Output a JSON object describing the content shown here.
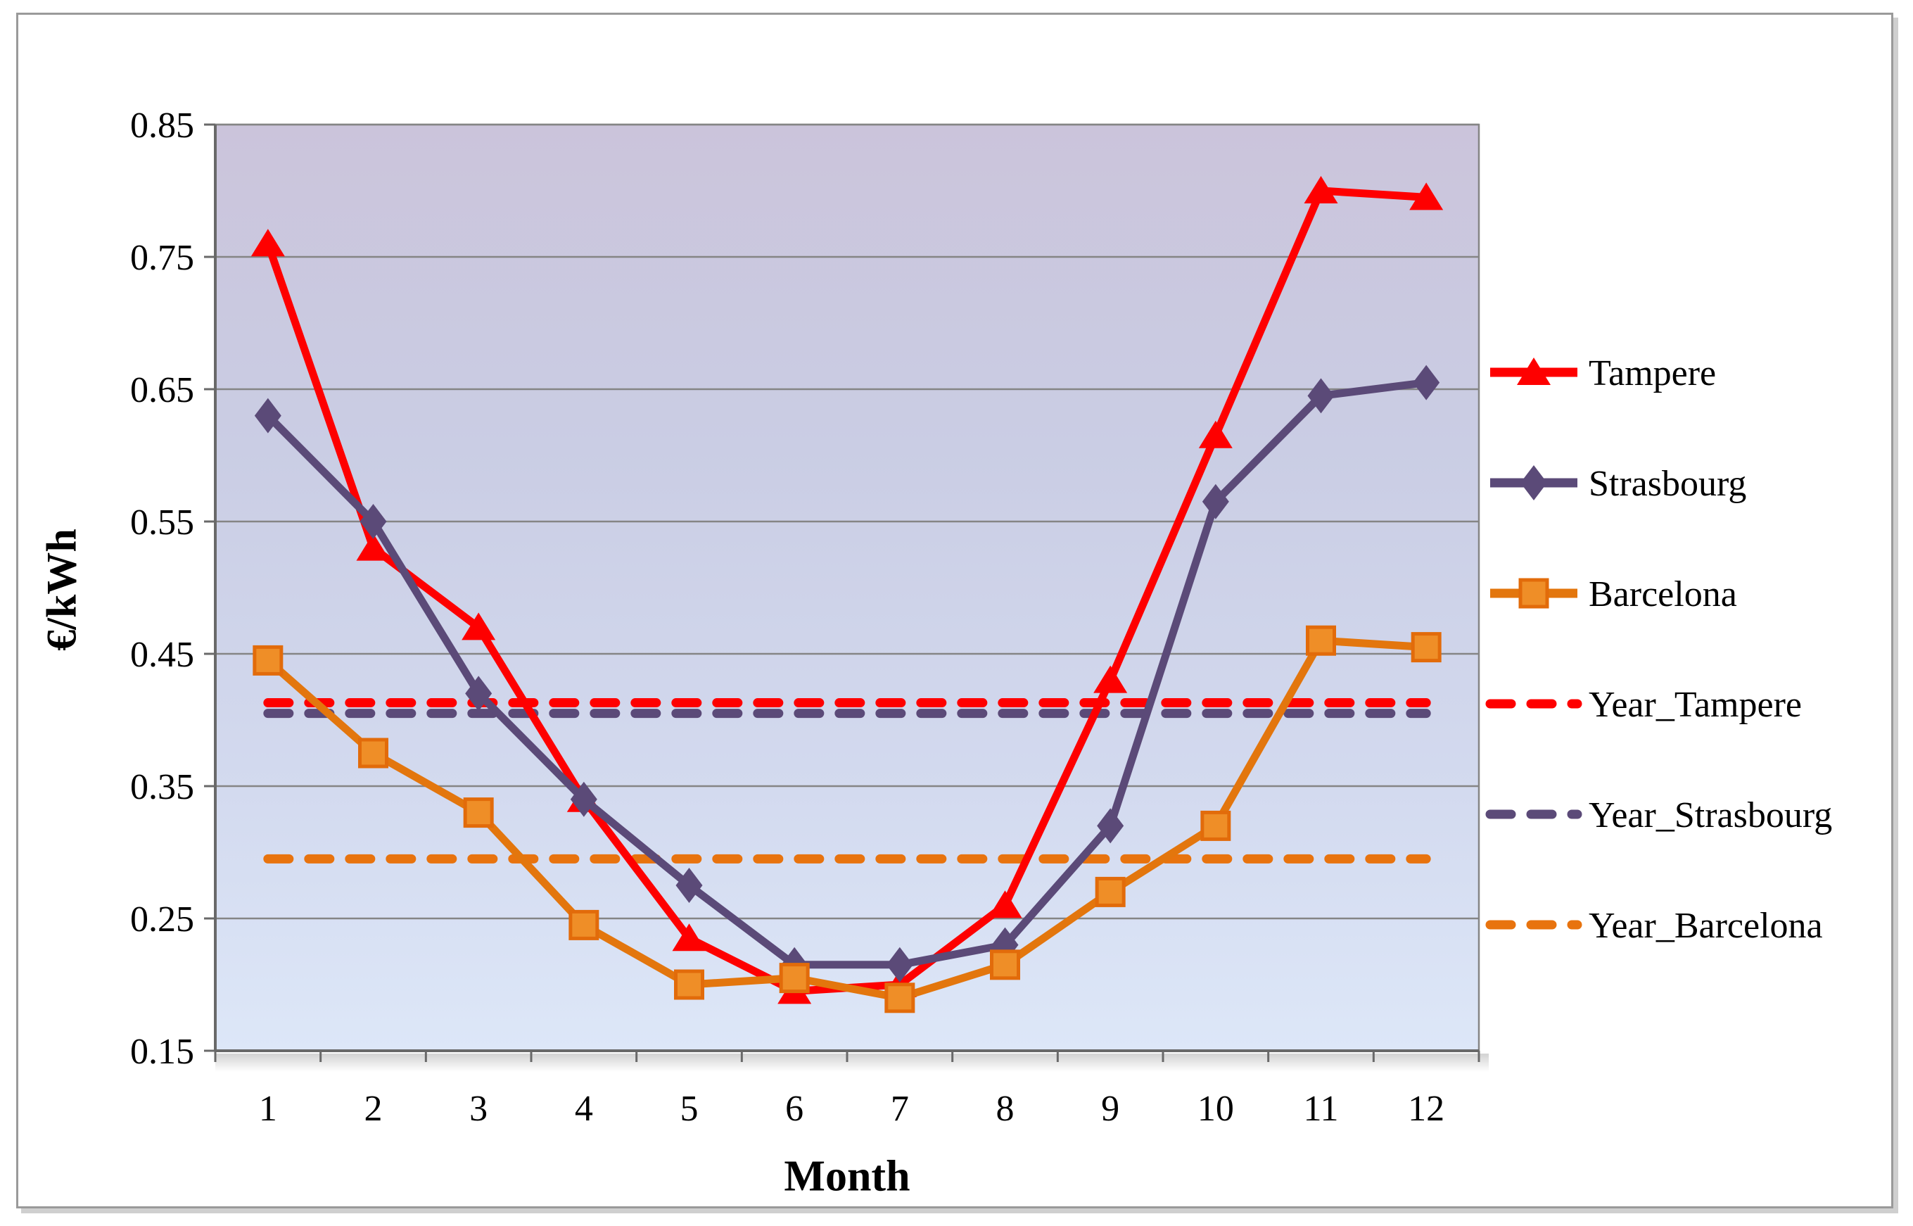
{
  "chart_data": {
    "type": "line",
    "title": "",
    "xlabel": "Month",
    "ylabel": "€/kWh",
    "categories": [
      1,
      2,
      3,
      4,
      5,
      6,
      7,
      8,
      9,
      10,
      11,
      12
    ],
    "ylim": [
      0.15,
      0.85
    ],
    "yticks": [
      0.15,
      0.25,
      0.35,
      0.45,
      0.55,
      0.65,
      0.75,
      0.85
    ],
    "grid": true,
    "legend_position": "right",
    "series": [
      {
        "name": "Tampere",
        "kind": "monthly",
        "marker": "triangle",
        "dash": false,
        "color": "#FE0000",
        "marker_fill": "#FE0000",
        "marker_stroke": "#FE0000",
        "values": [
          0.76,
          0.53,
          0.47,
          0.34,
          0.235,
          0.195,
          0.2,
          0.26,
          0.43,
          0.615,
          0.8,
          0.795
        ]
      },
      {
        "name": "Strasbourg",
        "kind": "monthly",
        "marker": "diamond",
        "dash": false,
        "color": "#5B4A78",
        "marker_fill": "#5B4A78",
        "marker_stroke": "#5B4A78",
        "values": [
          0.63,
          0.55,
          0.42,
          0.34,
          0.275,
          0.215,
          0.215,
          0.23,
          0.32,
          0.565,
          0.645,
          0.655
        ]
      },
      {
        "name": "Barcelona",
        "kind": "monthly",
        "marker": "square",
        "dash": false,
        "color": "#E3760D",
        "marker_fill": "#EF8E27",
        "marker_stroke": "#E26B0A",
        "values": [
          0.445,
          0.375,
          0.33,
          0.245,
          0.2,
          0.205,
          0.19,
          0.215,
          0.27,
          0.32,
          0.46,
          0.455
        ]
      },
      {
        "name": "Year_Tampere",
        "kind": "constant",
        "marker": "none",
        "dash": true,
        "color": "#FE0000",
        "value": 0.413
      },
      {
        "name": "Year_Strasbourg",
        "kind": "constant",
        "marker": "none",
        "dash": true,
        "color": "#5B4A78",
        "value": 0.405
      },
      {
        "name": "Year_Barcelona",
        "kind": "constant",
        "marker": "none",
        "dash": true,
        "color": "#E8730E",
        "value": 0.295
      }
    ],
    "style": {
      "plot_bg_gradient": [
        "#CBC4DB",
        "#CACDE4",
        "#D3DAEF",
        "#DDE7F8"
      ],
      "gridline_color": "#858585",
      "axis_color": "#696969",
      "text_color": "#000000"
    }
  }
}
